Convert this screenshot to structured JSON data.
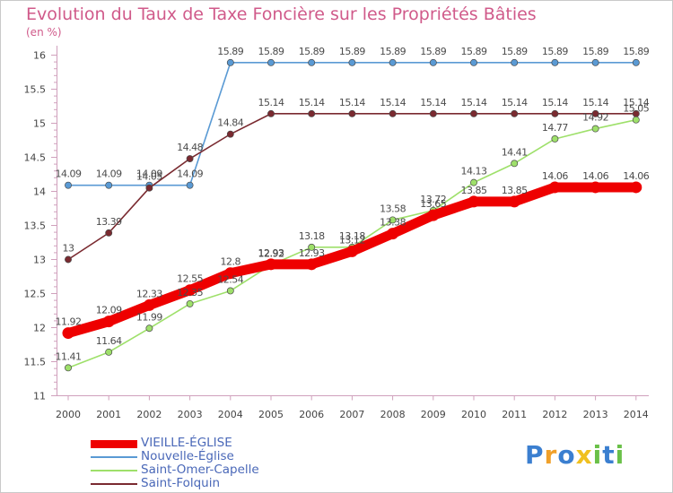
{
  "chart_data": {
    "type": "line",
    "title": "Evolution du Taux de Taxe Foncière sur les Propriétés Bâties",
    "unit": "(en %)",
    "x": [
      "2000",
      "2001",
      "2002",
      "2003",
      "2004",
      "2005",
      "2006",
      "2007",
      "2008",
      "2009",
      "2010",
      "2011",
      "2012",
      "2013",
      "2014"
    ],
    "yticks": [
      "11",
      "11.5",
      "12",
      "12.5",
      "13",
      "13.5",
      "14",
      "14.5",
      "15",
      "15.5",
      "16"
    ],
    "ylim": [
      11,
      16
    ],
    "grid": false,
    "legend_position": "bottom-left",
    "series": [
      {
        "name": "Nouvelle-Église",
        "color": "#5a9ad4",
        "emphasis": false,
        "values": [
          14.09,
          14.09,
          14.09,
          14.09,
          15.89,
          15.89,
          15.89,
          15.89,
          15.89,
          15.89,
          15.89,
          15.89,
          15.89,
          15.89,
          15.89
        ],
        "labels": [
          "14.09",
          "14.09",
          "14.09",
          "14.09",
          "15.89",
          "15.89",
          "15.89",
          "15.89",
          "15.89",
          "15.89",
          "15.89",
          "15.89",
          "15.89",
          "15.89",
          "15.89"
        ]
      },
      {
        "name": "Saint-Folquin",
        "color": "#7a2a30",
        "emphasis": false,
        "values": [
          13.0,
          13.39,
          14.05,
          14.48,
          14.84,
          15.14,
          15.14,
          15.14,
          15.14,
          15.14,
          15.14,
          15.14,
          15.14,
          15.14,
          15.14
        ],
        "labels": [
          "13",
          "13.39",
          "14.05",
          "14.48",
          "14.84",
          "15.14",
          "15.14",
          "15.14",
          "15.14",
          "15.14",
          "15.14",
          "15.14",
          "15.14",
          "15.14",
          "15.14"
        ]
      },
      {
        "name": "Saint-Omer-Capelle",
        "color": "#9ee06a",
        "emphasis": false,
        "values": [
          11.41,
          11.64,
          11.99,
          12.35,
          12.54,
          12.92,
          13.18,
          13.18,
          13.58,
          13.72,
          14.13,
          14.41,
          14.77,
          14.92,
          15.05
        ],
        "labels": [
          "11.41",
          "11.64",
          "11.99",
          "12.35",
          "12.54",
          "12.92",
          "13.18",
          "13.18",
          "13.58",
          "13.72",
          "14.13",
          "14.41",
          "14.77",
          "14.92",
          "15.05"
        ]
      },
      {
        "name": "VIEILLE-ÉGLISE",
        "color": "#ee0000",
        "emphasis": true,
        "values": [
          11.92,
          12.09,
          12.33,
          12.55,
          12.8,
          12.93,
          12.93,
          13.12,
          13.38,
          13.65,
          13.85,
          13.85,
          14.06,
          14.06,
          14.06
        ],
        "labels": [
          "11.92",
          "12.09",
          "12.33",
          "12.55",
          "12.8",
          "12.93",
          "12.93",
          "13.12",
          "13.38",
          "13.65",
          "13.85",
          "13.85",
          "14.06",
          "14.06",
          "14.06"
        ]
      }
    ],
    "legend": [
      {
        "name": "VIEILLE-ÉGLISE",
        "color": "#ee0000",
        "emphasis": true
      },
      {
        "name": "Nouvelle-Église",
        "color": "#5a9ad4",
        "emphasis": false
      },
      {
        "name": "Saint-Omer-Capelle",
        "color": "#9ee06a",
        "emphasis": false
      },
      {
        "name": "Saint-Folquin",
        "color": "#7a2a30",
        "emphasis": false
      }
    ]
  },
  "brand": {
    "letters": [
      "P",
      "r",
      "o",
      "x",
      "i",
      "t",
      "i"
    ],
    "colors": [
      "#3b7fd0",
      "#f0a02a",
      "#3b7fd0",
      "#f0c020",
      "#6ac048",
      "#3b7fd0",
      "#6ac048"
    ]
  }
}
